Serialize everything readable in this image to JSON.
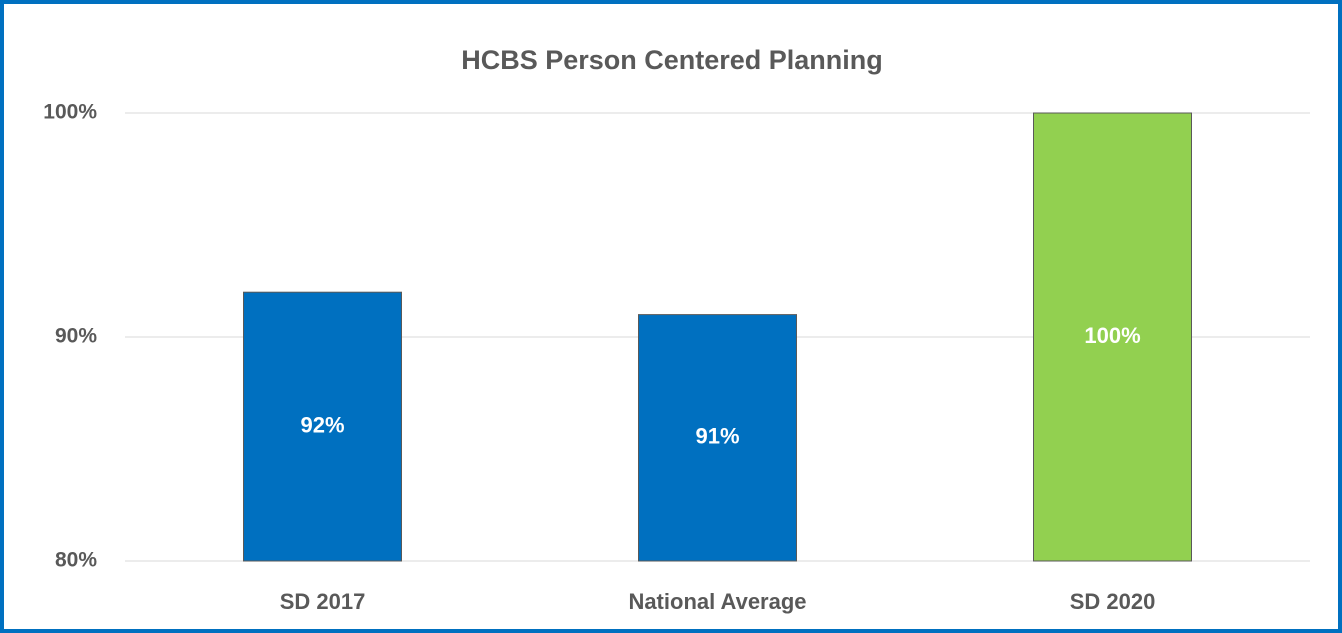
{
  "chart_data": {
    "type": "bar",
    "title": "HCBS Person Centered Planning",
    "categories": [
      "SD 2017",
      "National Average",
      "SD 2020"
    ],
    "values": [
      92,
      91,
      100
    ],
    "value_labels": [
      "92%",
      "91%",
      "100%"
    ],
    "colors": [
      "#0070c0",
      "#0070c0",
      "#92d050"
    ],
    "ylim": [
      80,
      100
    ],
    "yticks": [
      {
        "value": 80,
        "label": "80%"
      },
      {
        "value": 90,
        "label": "90%"
      },
      {
        "value": 100,
        "label": "100%"
      }
    ],
    "grid": true
  }
}
